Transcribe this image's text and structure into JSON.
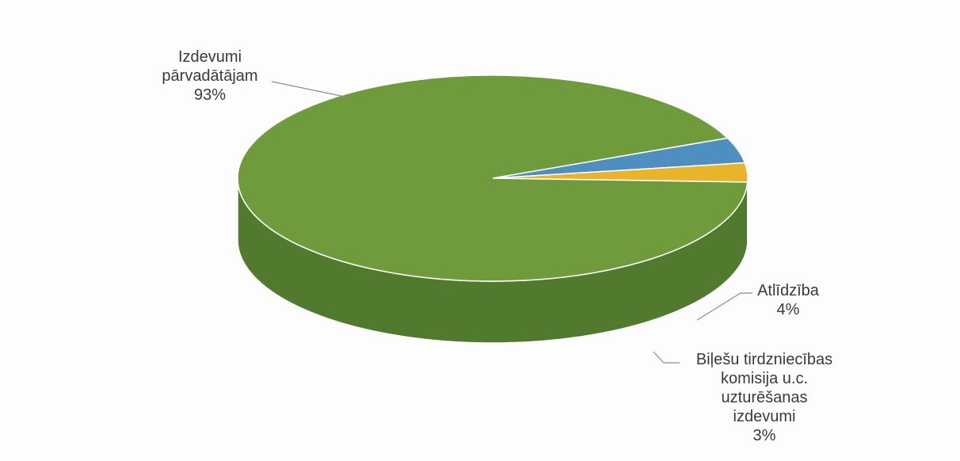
{
  "chart_data": {
    "type": "pie",
    "style": "3d",
    "slices": [
      {
        "label_lines": [
          "Izdevumi",
          "pārvadātājam"
        ],
        "percent_text": "93%",
        "value": 93,
        "color": "#6f9b3d",
        "side_color": "#527a2e"
      },
      {
        "label_lines": [
          "Atlīdzība"
        ],
        "percent_text": "4%",
        "value": 4,
        "color": "#4f8fbf",
        "side_color": "#2c5f86"
      },
      {
        "label_lines": [
          "Biļešu tirdzniecības",
          "komisija u.c.",
          "uzturēšanas",
          "izdevumi"
        ],
        "percent_text": "3%",
        "value": 3,
        "color": "#e8b52a",
        "side_color": "#7b5a2b"
      }
    ]
  }
}
